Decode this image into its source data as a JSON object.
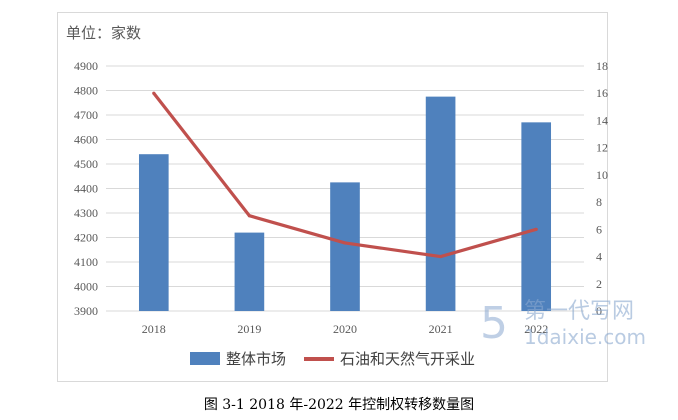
{
  "unit_label": "单位：家数",
  "caption": "图 3-1 2018 年-2022 年控制权转移数量图",
  "watermark": {
    "text_top": "第一代写网",
    "text_bottom": "1daixie.com",
    "logo_char": "5"
  },
  "colors": {
    "bar": "#4f81bd",
    "line": "#c0504d",
    "grid": "#d9d9d9",
    "axis_text": "#595959"
  },
  "chart_data": {
    "type": "bar",
    "categories": [
      "2018",
      "2019",
      "2020",
      "2021",
      "2022"
    ],
    "series": [
      {
        "name": "整体市场",
        "type": "bar",
        "axis": "left",
        "values": [
          4540,
          4220,
          4425,
          4775,
          4670
        ]
      },
      {
        "name": "石油和天然气开采业",
        "type": "line",
        "axis": "right",
        "values": [
          16,
          7,
          5,
          4,
          6
        ]
      }
    ],
    "ylim_left": [
      3900,
      4900
    ],
    "yticks_left": [
      3900,
      4000,
      4100,
      4200,
      4300,
      4400,
      4500,
      4600,
      4700,
      4800,
      4900
    ],
    "ylim_right": [
      0,
      18
    ],
    "yticks_right": [
      0,
      2,
      4,
      6,
      8,
      10,
      12,
      14,
      16,
      18
    ],
    "grid": true,
    "legend_position": "bottom"
  }
}
